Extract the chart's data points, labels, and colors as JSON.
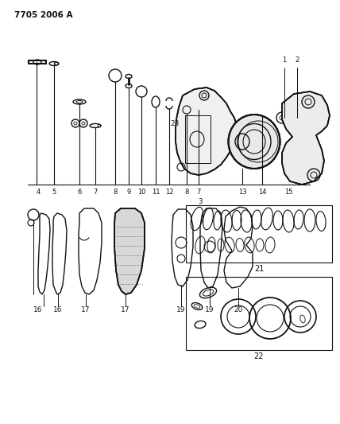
{
  "title": "7705 2006 A",
  "bg": "#ffffff",
  "lc": "#111111",
  "fig_width": 4.28,
  "fig_height": 5.33,
  "dpi": 100
}
